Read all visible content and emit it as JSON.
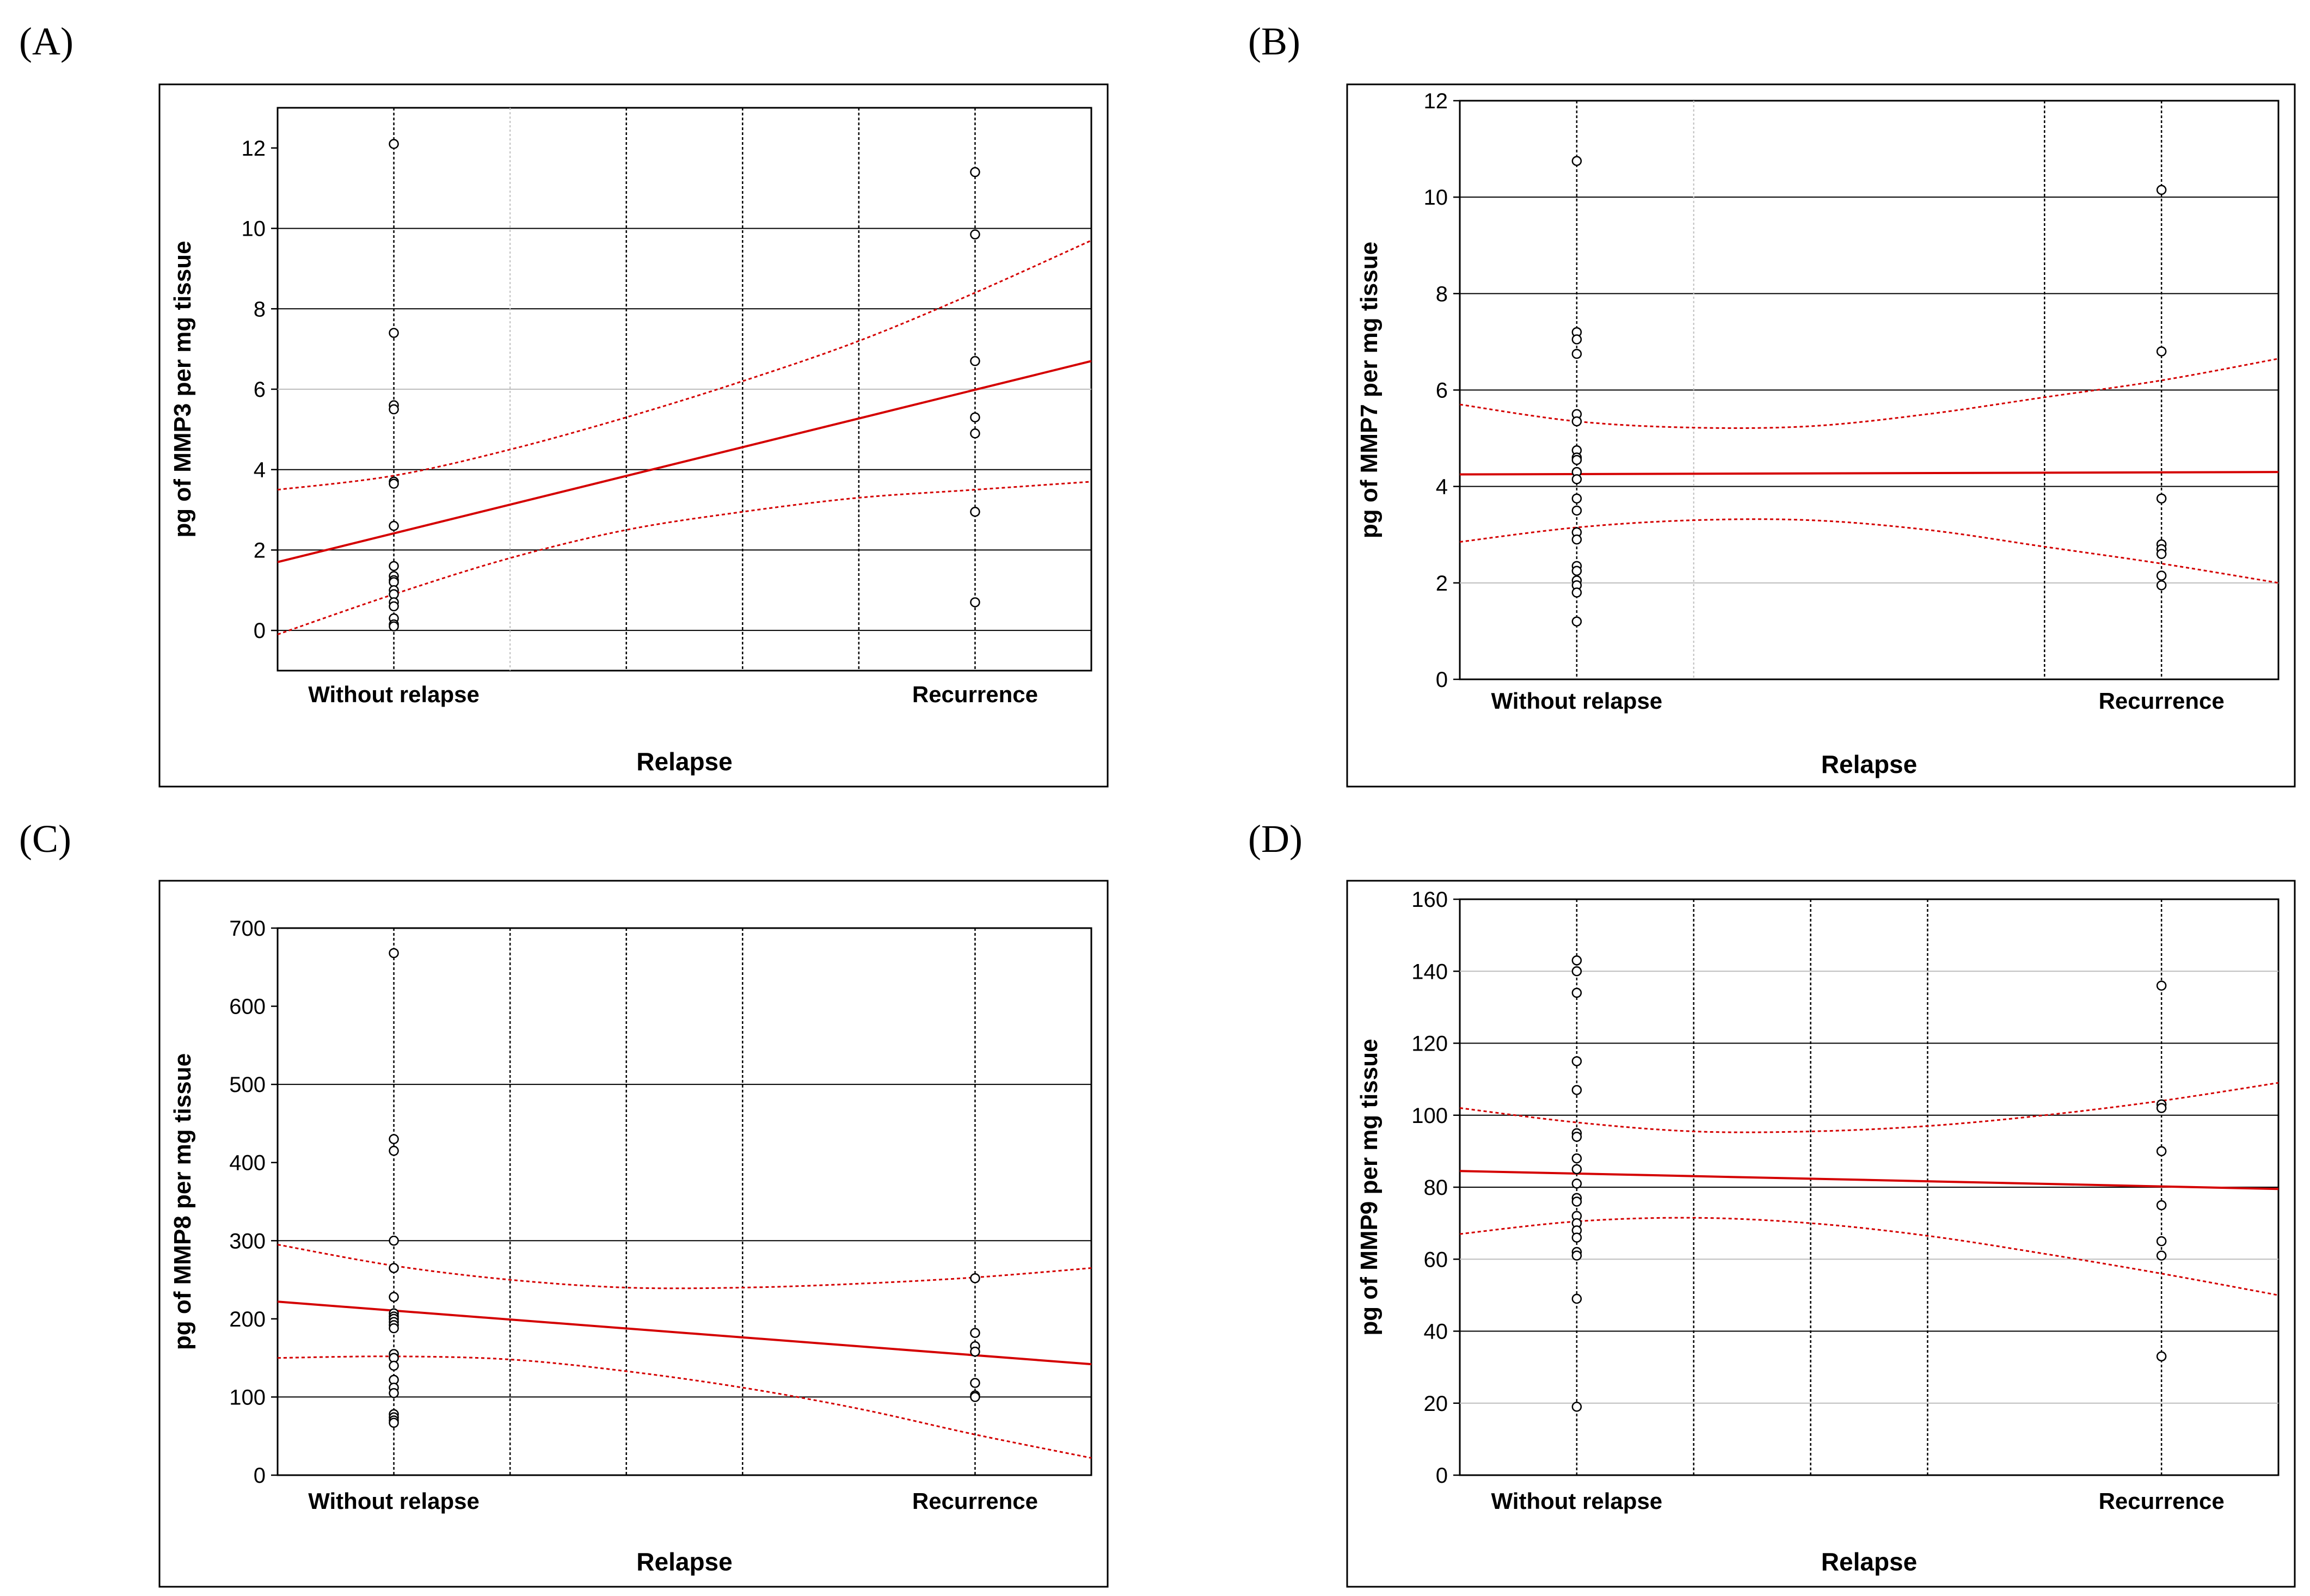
{
  "figure": {
    "colors": {
      "frame": "#000000",
      "grid_major": "#000000",
      "grid_minor": "#bdbdbd",
      "fit_line": "#d40000",
      "ci_line": "#d40000",
      "point": "#000000"
    }
  },
  "chart_data": [
    {
      "panel": "A",
      "panel_label": "(A)",
      "type": "scatter",
      "title": "",
      "xlabel": "Relapse",
      "ylabel": "pg of MMP3 per mg tissue",
      "categories": [
        "Without relapse",
        "Recurrence"
      ],
      "xlim": [
        -0.2,
        1.2
      ],
      "ylim": [
        -1,
        13
      ],
      "yticks": [
        0,
        2,
        4,
        6,
        8,
        10,
        12
      ],
      "major_y": [
        0,
        2,
        4,
        8,
        10
      ],
      "minor_y": [
        6
      ],
      "vlines_dotted_x": [
        0.4,
        0.6,
        0.8
      ],
      "vlines_minor_x": [
        0.2
      ],
      "series": [
        {
          "name": "Without relapse",
          "x": 0,
          "values": [
            12.1,
            7.4,
            5.6,
            5.5,
            3.7,
            3.65,
            2.6,
            1.6,
            1.35,
            1.25,
            1.2,
            1.0,
            0.9,
            0.7,
            0.6,
            0.3,
            0.15,
            0.1
          ]
        },
        {
          "name": "Recurrence",
          "x": 1,
          "values": [
            11.4,
            9.85,
            6.7,
            5.3,
            4.9,
            2.95,
            0.7
          ]
        }
      ],
      "fit": {
        "x": [
          -0.2,
          1.2
        ],
        "y": [
          1.7,
          6.7
        ]
      },
      "ci_upper": {
        "x": [
          -0.2,
          0.0,
          0.2,
          0.4,
          0.6,
          0.8,
          1.0,
          1.2
        ],
        "y": [
          3.5,
          3.85,
          4.5,
          5.3,
          6.2,
          7.2,
          8.4,
          9.7
        ]
      },
      "ci_lower": {
        "x": [
          -0.2,
          0.0,
          0.2,
          0.4,
          0.6,
          0.8,
          1.0,
          1.2
        ],
        "y": [
          -0.1,
          0.9,
          1.8,
          2.5,
          2.95,
          3.3,
          3.5,
          3.7
        ]
      }
    },
    {
      "panel": "B",
      "panel_label": "(B)",
      "type": "scatter",
      "title": "",
      "xlabel": "Relapse",
      "ylabel": "pg of MMP7 per mg tissue",
      "categories": [
        "Without relapse",
        "Recurrence"
      ],
      "xlim": [
        -0.2,
        1.2
      ],
      "ylim": [
        0,
        12
      ],
      "yticks": [
        0,
        2,
        4,
        6,
        8,
        10,
        12
      ],
      "major_y": [
        4,
        6,
        8,
        10
      ],
      "minor_y": [
        2
      ],
      "vlines_dotted_x": [
        0.8
      ],
      "vlines_minor_x": [
        0.2
      ],
      "series": [
        {
          "name": "Without relapse",
          "x": 0,
          "values": [
            10.75,
            7.2,
            7.05,
            6.75,
            5.5,
            5.35,
            4.75,
            4.6,
            4.55,
            4.3,
            4.15,
            3.75,
            3.5,
            3.05,
            2.9,
            2.35,
            2.25,
            2.05,
            1.95,
            1.8,
            1.2
          ]
        },
        {
          "name": "Recurrence",
          "x": 1,
          "values": [
            10.15,
            6.8,
            3.75,
            2.8,
            2.7,
            2.6,
            2.15,
            1.95
          ]
        }
      ],
      "fit": {
        "x": [
          -0.2,
          1.2
        ],
        "y": [
          4.25,
          4.3
        ]
      },
      "ci_upper": {
        "x": [
          -0.2,
          0.0,
          0.2,
          0.4,
          0.6,
          0.8,
          1.0,
          1.2
        ],
        "y": [
          5.7,
          5.35,
          5.22,
          5.25,
          5.5,
          5.85,
          6.2,
          6.65
        ]
      },
      "ci_lower": {
        "x": [
          -0.2,
          0.0,
          0.2,
          0.4,
          0.6,
          0.8,
          1.0,
          1.2
        ],
        "y": [
          2.85,
          3.15,
          3.3,
          3.3,
          3.1,
          2.75,
          2.4,
          2.0
        ]
      }
    },
    {
      "panel": "C",
      "panel_label": "(C)",
      "type": "scatter",
      "title": "",
      "xlabel": "Relapse",
      "ylabel": "pg of MMP8 per mg tissue",
      "categories": [
        "Without relapse",
        "Recurrence"
      ],
      "xlim": [
        -0.2,
        1.2
      ],
      "ylim": [
        0,
        700
      ],
      "yticks": [
        0,
        100,
        200,
        300,
        400,
        500,
        600,
        700
      ],
      "major_y": [
        100,
        300,
        500
      ],
      "minor_y": [],
      "vlines_dotted_x": [
        0.2,
        0.4,
        0.6
      ],
      "vlines_minor_x": [],
      "series": [
        {
          "name": "Without relapse",
          "x": 0,
          "values": [
            668,
            430,
            415,
            300,
            265,
            228,
            207,
            203,
            200,
            196,
            192,
            188,
            155,
            150,
            140,
            122,
            112,
            105,
            78,
            74,
            70,
            67
          ]
        },
        {
          "name": "Recurrence",
          "x": 1,
          "values": [
            252,
            182,
            165,
            158,
            118,
            102,
            100
          ]
        }
      ],
      "fit": {
        "x": [
          -0.2,
          1.2
        ],
        "y": [
          222,
          142
        ]
      },
      "ci_upper": {
        "x": [
          -0.2,
          0.0,
          0.2,
          0.4,
          0.6,
          0.8,
          1.0,
          1.2
        ],
        "y": [
          295,
          268,
          250,
          240,
          240,
          245,
          253,
          265
        ]
      },
      "ci_lower": {
        "x": [
          -0.2,
          0.0,
          0.2,
          0.4,
          0.6,
          0.8,
          1.0,
          1.2
        ],
        "y": [
          150,
          152,
          148,
          133,
          112,
          85,
          52,
          22
        ]
      }
    },
    {
      "panel": "D",
      "panel_label": "(D)",
      "type": "scatter",
      "title": "",
      "xlabel": "Relapse",
      "ylabel": "pg of MMP9 per mg tissue",
      "categories": [
        "Without relapse",
        "Recurrence"
      ],
      "xlim": [
        -0.2,
        1.2
      ],
      "ylim": [
        0,
        160
      ],
      "yticks": [
        0,
        20,
        40,
        60,
        80,
        100,
        120,
        140,
        160
      ],
      "major_y": [
        40,
        80,
        100,
        120
      ],
      "minor_y": [
        20,
        60,
        140
      ],
      "vlines_dotted_x": [
        0.2,
        0.4,
        0.6
      ],
      "vlines_minor_x": [],
      "series": [
        {
          "name": "Without relapse",
          "x": 0,
          "values": [
            143,
            140,
            134,
            115,
            107,
            95,
            94,
            88,
            85,
            81,
            77,
            76,
            72,
            70,
            68,
            66,
            62,
            61,
            49,
            19
          ]
        },
        {
          "name": "Recurrence",
          "x": 1,
          "values": [
            136,
            103,
            102,
            90,
            75,
            65,
            61,
            33
          ]
        }
      ],
      "fit": {
        "x": [
          -0.2,
          1.2
        ],
        "y": [
          84.5,
          79.5
        ]
      },
      "ci_upper": {
        "x": [
          -0.2,
          0.0,
          0.2,
          0.4,
          0.6,
          0.8,
          1.0,
          1.2
        ],
        "y": [
          102,
          98,
          95.5,
          95.5,
          97,
          100,
          104,
          109
        ]
      },
      "ci_lower": {
        "x": [
          -0.2,
          0.0,
          0.2,
          0.4,
          0.6,
          0.8,
          1.0,
          1.2
        ],
        "y": [
          67,
          70.5,
          71.5,
          70,
          66.5,
          61.5,
          56,
          50
        ]
      }
    }
  ]
}
